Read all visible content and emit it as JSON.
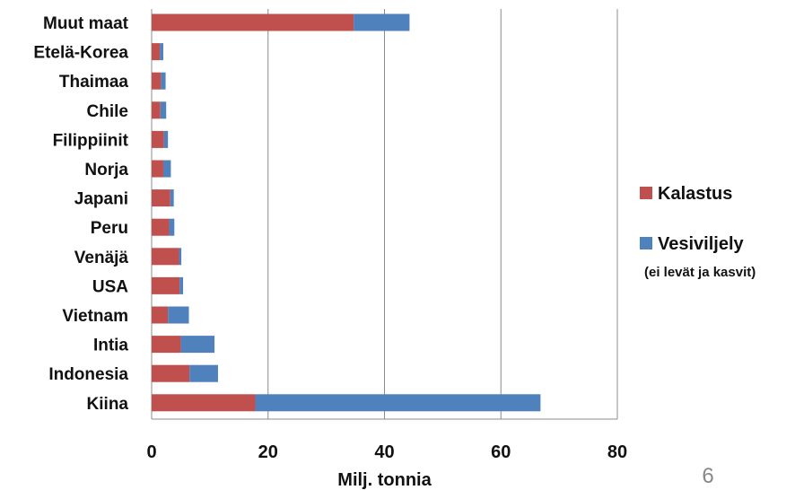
{
  "chart_data": {
    "type": "bar",
    "orientation": "horizontal",
    "stacked": true,
    "categories": [
      "Muut maat",
      "Etelä-Korea",
      "Thaimaa",
      "Chile",
      "Filippiinit",
      "Norja",
      "Japani",
      "Peru",
      "Venäjä",
      "USA",
      "Vietnam",
      "Intia",
      "Indonesia",
      "Kiina"
    ],
    "series": [
      {
        "name": "Kalastus",
        "color": "#c0504d",
        "values": [
          34.7,
          1.4,
          1.6,
          1.5,
          2.1,
          2.0,
          3.2,
          3.0,
          4.7,
          4.8,
          2.8,
          5.0,
          6.5,
          17.8
        ]
      },
      {
        "name": "Vesiviljely",
        "color": "#4f81bd",
        "values": [
          9.6,
          0.6,
          0.8,
          1.0,
          0.7,
          1.3,
          0.6,
          0.9,
          0.4,
          0.6,
          3.6,
          5.8,
          4.9,
          49.0
        ]
      }
    ],
    "xlabel": "Milj. tonnia",
    "xlim": [
      0,
      80
    ],
    "xticks": [
      "0",
      "20",
      "40",
      "60",
      "80"
    ],
    "grid": "vertical",
    "legend": "right",
    "legend_note": "(ei levät ja kasvit)"
  },
  "slide_number": "6"
}
